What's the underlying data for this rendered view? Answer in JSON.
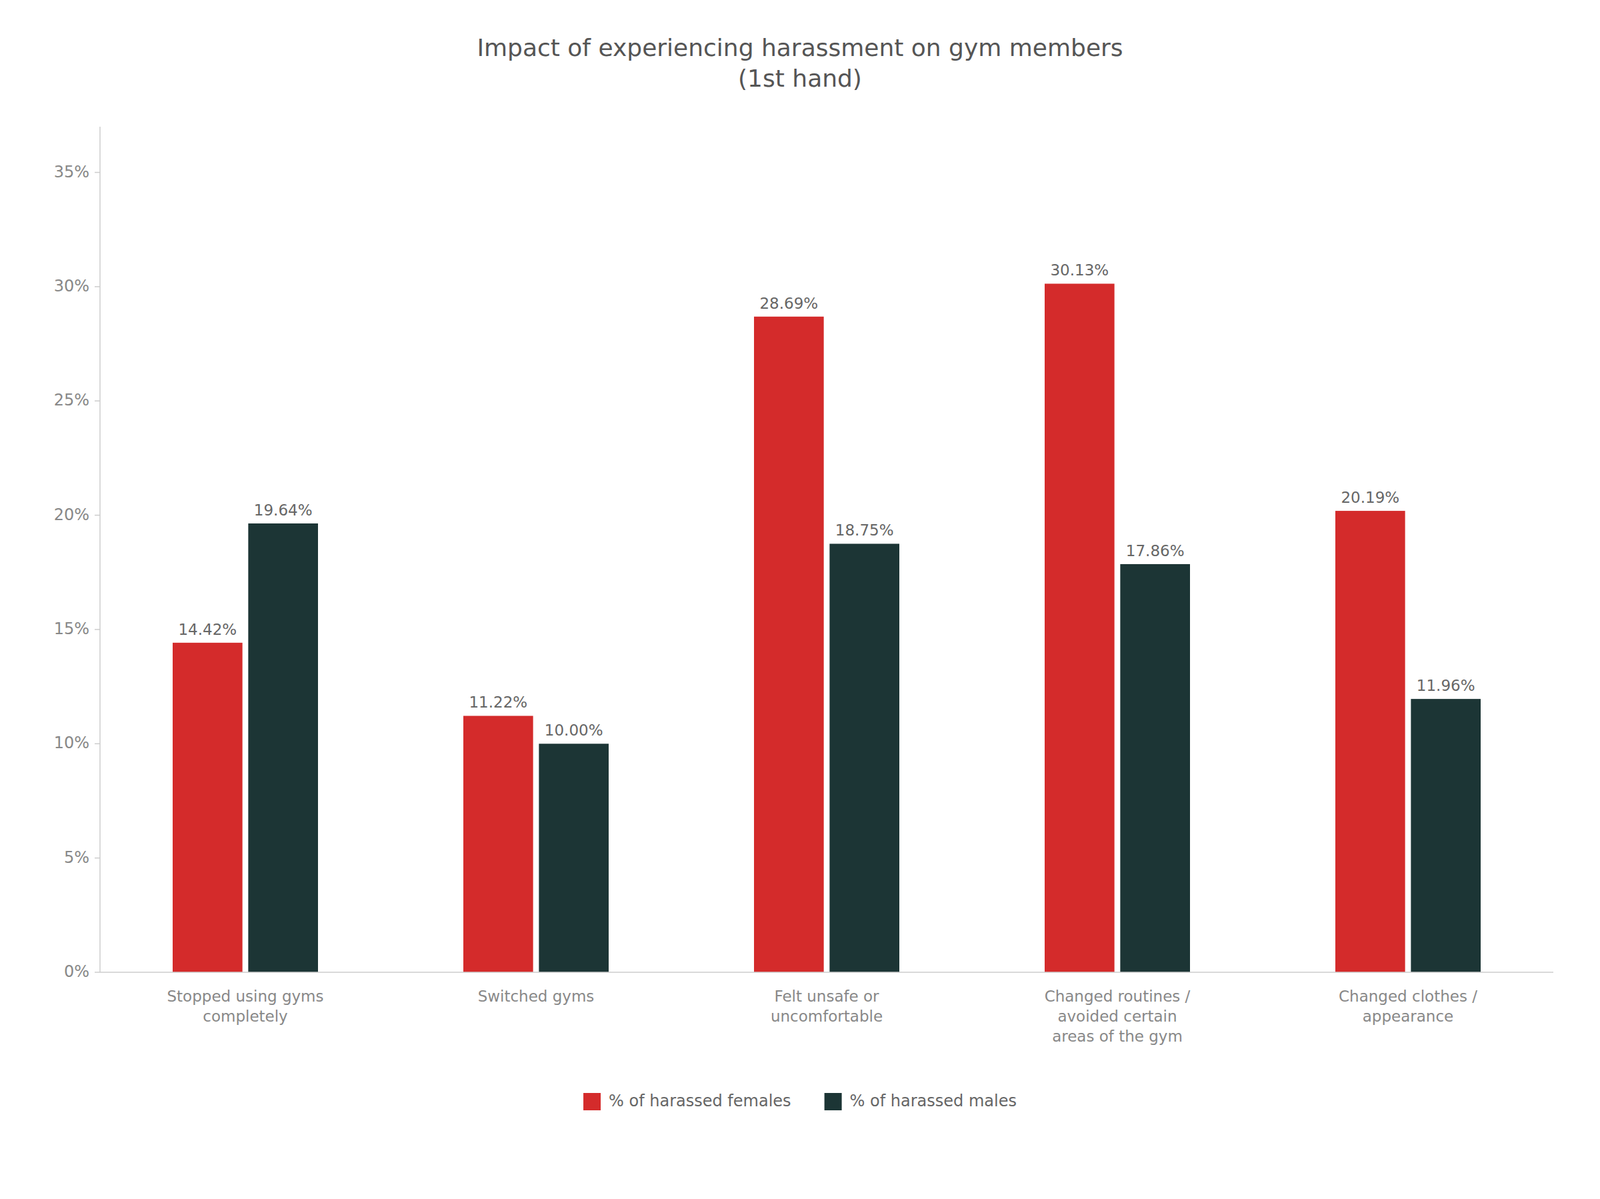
{
  "chart_data": {
    "type": "bar",
    "title": "Impact of experiencing harassment on gym members\n(1st hand)",
    "categories": [
      "Stopped using gyms\ncompletely",
      "Switched gyms",
      "Felt unsafe or\nuncomfortable",
      "Changed routines /\navoided certain\nareas of the gym",
      "Changed clothes /\nappearance"
    ],
    "series": [
      {
        "name": "% of harassed females",
        "color": "#D42B2B",
        "values": [
          14.42,
          11.22,
          28.69,
          30.13,
          20.19
        ],
        "value_labels": [
          "14.42%",
          "11.22%",
          "28.69%",
          "30.13%",
          "20.19%"
        ]
      },
      {
        "name": "% of harassed males",
        "color": "#1C3535",
        "values": [
          19.64,
          10.0,
          18.75,
          17.86,
          11.96
        ],
        "value_labels": [
          "19.64%",
          "10.00%",
          "18.75%",
          "17.86%",
          "11.96%"
        ]
      }
    ],
    "ylim": [
      0,
      37
    ],
    "yticks": [
      {
        "value": 0,
        "label": "0%"
      },
      {
        "value": 5,
        "label": "5%"
      },
      {
        "value": 10,
        "label": "10%"
      },
      {
        "value": 15,
        "label": "15%"
      },
      {
        "value": 20,
        "label": "20%"
      },
      {
        "value": 25,
        "label": "25%"
      },
      {
        "value": 30,
        "label": "30%"
      },
      {
        "value": 35,
        "label": "35%"
      }
    ],
    "data_labels": true,
    "grid": false,
    "legend": "bottom"
  }
}
